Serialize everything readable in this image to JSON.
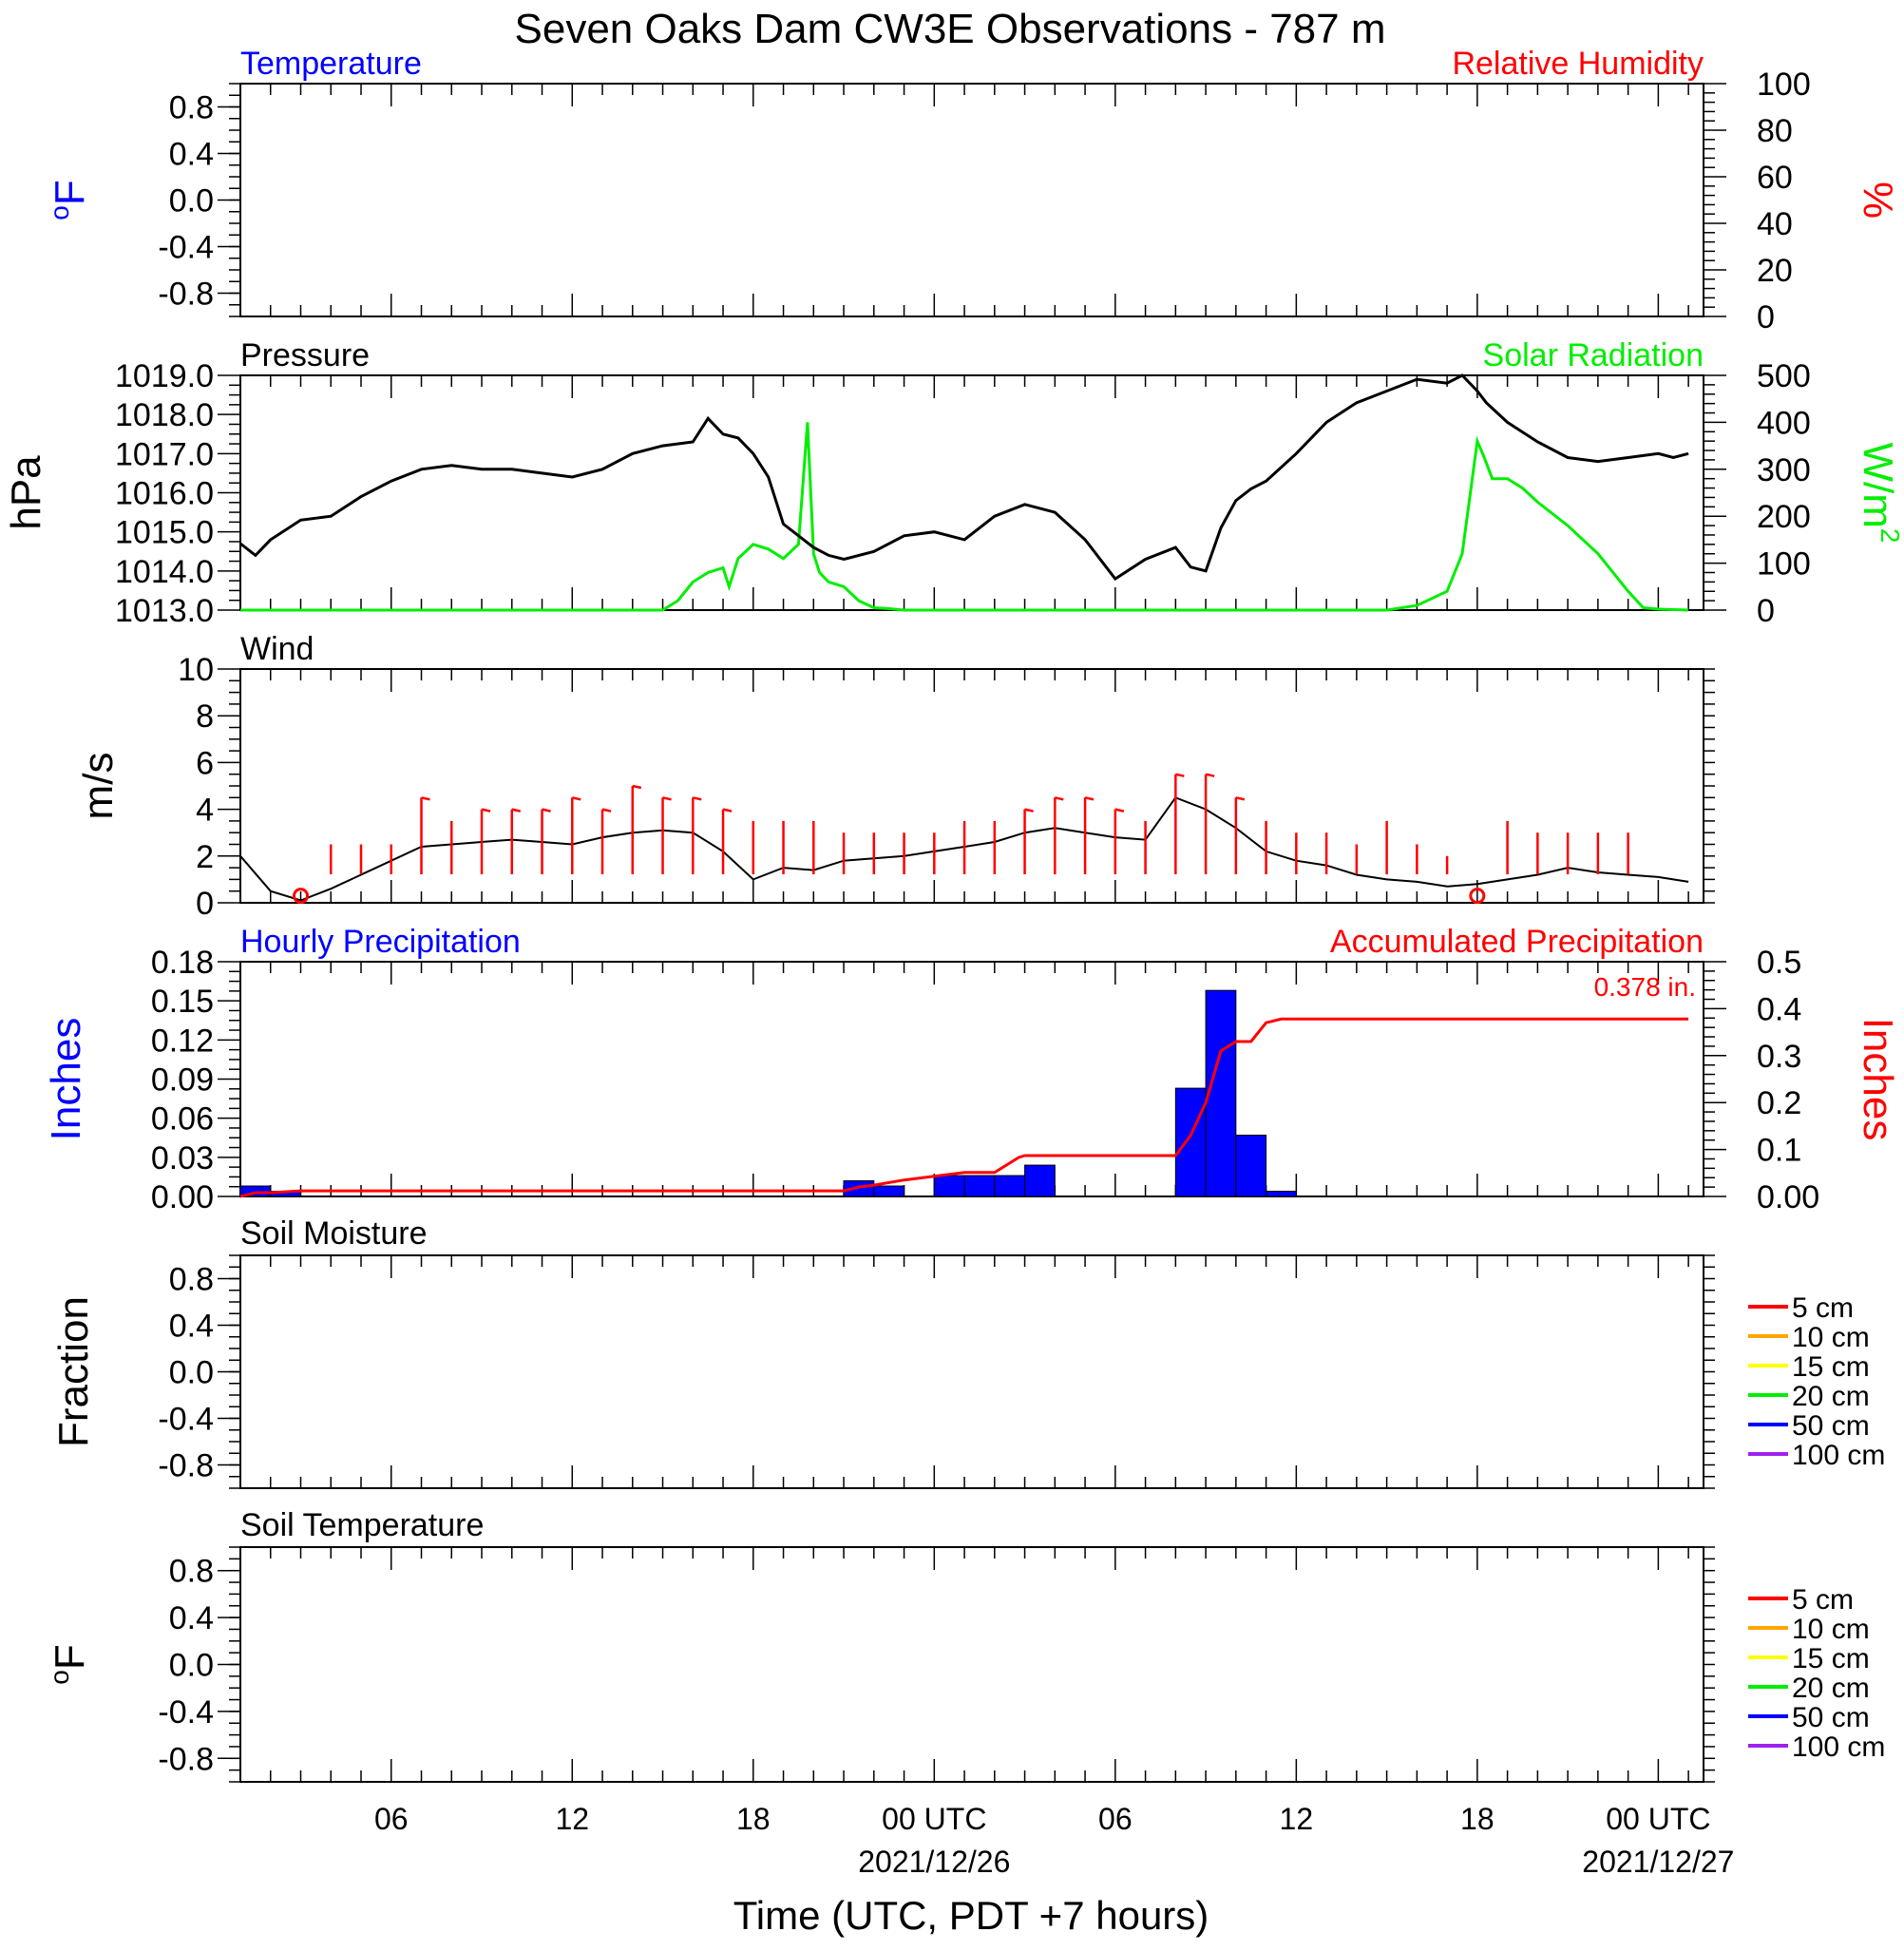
{
  "title": "Seven Oaks Dam CW3E Observations - 787 m",
  "xlabel": "Time (UTC, PDT +7 hours)",
  "x_axis": {
    "range_hours": [
      0,
      48.5
    ],
    "ticks": [
      {
        "hour": 5,
        "label": "06",
        "sub": ""
      },
      {
        "hour": 11,
        "label": "12",
        "sub": ""
      },
      {
        "hour": 17,
        "label": "18",
        "sub": ""
      },
      {
        "hour": 23,
        "label": "00 UTC",
        "sub": "2021/12/26"
      },
      {
        "hour": 29,
        "label": "06",
        "sub": ""
      },
      {
        "hour": 35,
        "label": "12",
        "sub": ""
      },
      {
        "hour": 41,
        "label": "18",
        "sub": ""
      },
      {
        "hour": 47,
        "label": "00 UTC",
        "sub": "2021/12/27"
      }
    ]
  },
  "panels": {
    "temp_rh": {
      "left_title": "Temperature",
      "right_title": "Relative Humidity",
      "left_unit": "oF",
      "right_unit": "%",
      "left_ticks": [
        "0.8",
        "0.4",
        "0.0",
        "-0.4",
        "-0.8"
      ],
      "right_ticks": [
        "100",
        "80",
        "60",
        "40",
        "20",
        "0"
      ],
      "left_color": "#0000ff",
      "right_color": "#ff0000"
    },
    "pressure_solar": {
      "left_title": "Pressure",
      "right_title": "Solar Radiation",
      "left_unit": "hPa",
      "right_unit": "W/m2",
      "left_ticks": [
        "1019.0",
        "1018.0",
        "1017.0",
        "1016.0",
        "1015.0",
        "1014.0",
        "1013.0"
      ],
      "right_ticks": [
        "500",
        "400",
        "300",
        "200",
        "100",
        "0"
      ],
      "left_color": "#000000",
      "right_color": "#00ee00"
    },
    "wind": {
      "left_title": "Wind",
      "left_unit": "m/s",
      "left_ticks": [
        "10",
        "8",
        "6",
        "4",
        "2",
        "0"
      ],
      "barb_color": "#ff0000"
    },
    "precip": {
      "left_title": "Hourly Precipitation",
      "right_title": "Accumulated Precipitation",
      "left_unit": "Inches",
      "right_unit": "Inches",
      "left_ticks": [
        "0.18",
        "0.15",
        "0.12",
        "0.09",
        "0.06",
        "0.03",
        "0.00"
      ],
      "right_ticks": [
        "0.5",
        "0.4",
        "0.3",
        "0.2",
        "0.1",
        "0.00"
      ],
      "total_label": "0.378 in.",
      "left_color": "#0000ff",
      "right_color": "#ff0000"
    },
    "soil_moisture": {
      "left_title": "Soil Moisture",
      "left_unit": "Fraction",
      "left_ticks": [
        "0.8",
        "0.4",
        "0.0",
        "-0.4",
        "-0.8"
      ]
    },
    "soil_temp": {
      "left_title": "Soil Temperature",
      "left_unit": "oF",
      "left_ticks": [
        "0.8",
        "0.4",
        "0.0",
        "-0.4",
        "-0.8"
      ]
    }
  },
  "legend": [
    {
      "label": "5 cm",
      "color": "#ff0000"
    },
    {
      "label": "10 cm",
      "color": "#ffa500"
    },
    {
      "label": "15 cm",
      "color": "#ffff00"
    },
    {
      "label": "20 cm",
      "color": "#00ee00"
    },
    {
      "label": "50 cm",
      "color": "#0000ff"
    },
    {
      "label": "100 cm",
      "color": "#a020f0"
    }
  ],
  "chart_data": [
    {
      "type": "line",
      "title": "Temperature / Relative Humidity",
      "series": [],
      "ylim": [
        -1,
        1
      ],
      "y2lim": [
        0,
        100
      ]
    },
    {
      "type": "line",
      "title": "Pressure / Solar Radiation",
      "x_unit": "hours since 2021/12/25 01 UTC",
      "ylim": [
        1013,
        1019
      ],
      "y2lim": [
        0,
        500
      ],
      "series": [
        {
          "name": "Pressure",
          "axis": "left",
          "x": [
            0,
            0.5,
            1,
            2,
            3,
            4,
            5,
            6,
            7,
            8,
            9,
            10,
            11,
            12,
            13,
            14,
            15,
            15.5,
            16,
            16.5,
            17,
            17.5,
            18,
            19,
            19.5,
            20,
            21,
            22,
            23,
            24,
            25,
            26,
            27,
            28,
            29,
            30,
            31,
            31.5,
            32,
            32.5,
            33,
            33.5,
            34,
            35,
            36,
            37,
            38,
            39,
            40,
            40.5,
            41,
            41.3,
            42,
            43,
            44,
            45,
            46,
            47,
            47.5,
            48
          ],
          "y": [
            1014.7,
            1014.4,
            1014.8,
            1015.3,
            1015.4,
            1015.9,
            1016.3,
            1016.6,
            1016.7,
            1016.6,
            1016.6,
            1016.5,
            1016.4,
            1016.6,
            1017.0,
            1017.2,
            1017.3,
            1017.9,
            1017.5,
            1017.4,
            1017.0,
            1016.4,
            1015.2,
            1014.6,
            1014.4,
            1014.3,
            1014.5,
            1014.9,
            1015.0,
            1014.8,
            1015.4,
            1015.7,
            1015.5,
            1014.8,
            1013.8,
            1014.3,
            1014.6,
            1014.1,
            1014.0,
            1015.1,
            1015.8,
            1016.1,
            1016.3,
            1017.0,
            1017.8,
            1018.3,
            1018.6,
            1018.9,
            1018.8,
            1019.0,
            1018.6,
            1018.3,
            1017.8,
            1017.3,
            1016.9,
            1016.8,
            1016.9,
            1017.0,
            1016.9,
            1017.0
          ]
        },
        {
          "name": "Solar Radiation",
          "axis": "right",
          "x": [
            0,
            14,
            14.5,
            15,
            15.5,
            16,
            16.2,
            16.5,
            17,
            17.5,
            18,
            18.5,
            18.8,
            19,
            19.2,
            19.5,
            20,
            20.5,
            21,
            21.5,
            22,
            22.5,
            38,
            39,
            40,
            40.5,
            41,
            41.2,
            41.5,
            42,
            42.5,
            43,
            44,
            45,
            46,
            46.5,
            47,
            48
          ],
          "y": [
            0,
            0,
            20,
            60,
            80,
            90,
            50,
            110,
            140,
            130,
            110,
            140,
            400,
            120,
            80,
            60,
            50,
            20,
            5,
            3,
            0,
            0,
            0,
            10,
            40,
            120,
            360,
            330,
            280,
            280,
            260,
            230,
            180,
            120,
            40,
            5,
            2,
            0
          ]
        }
      ]
    },
    {
      "type": "line",
      "title": "Wind",
      "x_unit": "hours since 2021/12/25 01 UTC",
      "ylim": [
        0,
        10
      ],
      "series": [
        {
          "name": "Wind speed",
          "x": [
            0,
            1,
            2,
            3,
            4,
            5,
            6,
            7,
            8,
            9,
            10,
            11,
            12,
            13,
            14,
            15,
            16,
            17,
            18,
            19,
            20,
            21,
            22,
            23,
            24,
            25,
            26,
            27,
            28,
            29,
            30,
            31,
            32,
            33,
            34,
            35,
            36,
            37,
            38,
            39,
            40,
            41,
            42,
            43,
            44,
            45,
            46,
            47,
            48
          ],
          "y": [
            2.0,
            0.5,
            0.1,
            0.6,
            1.2,
            1.8,
            2.4,
            2.5,
            2.6,
            2.7,
            2.6,
            2.5,
            2.8,
            3.0,
            3.1,
            3.0,
            2.2,
            1.0,
            1.5,
            1.4,
            1.8,
            1.9,
            2.0,
            2.2,
            2.4,
            2.6,
            3.0,
            3.2,
            3.0,
            2.8,
            2.7,
            4.5,
            4.0,
            3.2,
            2.2,
            1.8,
            1.6,
            1.2,
            1.0,
            0.9,
            0.7,
            0.8,
            1.0,
            1.2,
            1.5,
            1.3,
            1.2,
            1.1,
            0.9
          ]
        }
      ],
      "barbs": [
        {
          "hour": 2,
          "speed": 0,
          "calm": true
        },
        {
          "hour": 3,
          "speed": 2.5
        },
        {
          "hour": 4,
          "speed": 2.5
        },
        {
          "hour": 5,
          "speed": 2.5
        },
        {
          "hour": 6,
          "speed": 4.5
        },
        {
          "hour": 7,
          "speed": 3.5
        },
        {
          "hour": 8,
          "speed": 4.0
        },
        {
          "hour": 9,
          "speed": 4.0
        },
        {
          "hour": 10,
          "speed": 4.0
        },
        {
          "hour": 11,
          "speed": 4.5
        },
        {
          "hour": 12,
          "speed": 4.0
        },
        {
          "hour": 13,
          "speed": 5.0
        },
        {
          "hour": 14,
          "speed": 4.5
        },
        {
          "hour": 15,
          "speed": 4.5
        },
        {
          "hour": 16,
          "speed": 4.0
        },
        {
          "hour": 17,
          "speed": 3.5
        },
        {
          "hour": 18,
          "speed": 3.5
        },
        {
          "hour": 19,
          "speed": 3.5
        },
        {
          "hour": 20,
          "speed": 3.0
        },
        {
          "hour": 21,
          "speed": 3.0
        },
        {
          "hour": 22,
          "speed": 3.0
        },
        {
          "hour": 23,
          "speed": 3.0
        },
        {
          "hour": 24,
          "speed": 3.5
        },
        {
          "hour": 25,
          "speed": 3.5
        },
        {
          "hour": 26,
          "speed": 4.0
        },
        {
          "hour": 27,
          "speed": 4.5
        },
        {
          "hour": 28,
          "speed": 4.5
        },
        {
          "hour": 29,
          "speed": 4.0
        },
        {
          "hour": 30,
          "speed": 3.5
        },
        {
          "hour": 31,
          "speed": 5.5
        },
        {
          "hour": 32,
          "speed": 5.5
        },
        {
          "hour": 33,
          "speed": 4.5
        },
        {
          "hour": 34,
          "speed": 3.5
        },
        {
          "hour": 35,
          "speed": 3.0
        },
        {
          "hour": 36,
          "speed": 3.0
        },
        {
          "hour": 37,
          "speed": 2.5
        },
        {
          "hour": 38,
          "speed": 3.5
        },
        {
          "hour": 39,
          "speed": 2.5
        },
        {
          "hour": 40,
          "speed": 2.0
        },
        {
          "hour": 41,
          "speed": 0,
          "calm": true
        },
        {
          "hour": 42,
          "speed": 3.5
        },
        {
          "hour": 43,
          "speed": 3.0
        },
        {
          "hour": 44,
          "speed": 3.0
        },
        {
          "hour": 45,
          "speed": 3.0
        },
        {
          "hour": 46,
          "speed": 3.0
        }
      ]
    },
    {
      "type": "bar",
      "title": "Hourly / Accumulated Precipitation",
      "x_unit": "hours since 2021/12/25 01 UTC",
      "ylim": [
        0,
        0.18
      ],
      "y2lim": [
        0,
        0.5
      ],
      "series": [
        {
          "name": "Hourly Precipitation",
          "axis": "left",
          "x": [
            0,
            1,
            20,
            21,
            23,
            24,
            25,
            26,
            31,
            32,
            33,
            34
          ],
          "y": [
            0.008,
            0.004,
            0.012,
            0.008,
            0.016,
            0.016,
            0.016,
            0.024,
            0.083,
            0.158,
            0.047,
            0.004
          ]
        },
        {
          "name": "Accumulated Precipitation",
          "axis": "right",
          "x": [
            0,
            0.5,
            1,
            2,
            20,
            20.5,
            21,
            22,
            23,
            24,
            25,
            25.8,
            26,
            31,
            31.5,
            32,
            32.5,
            33,
            33.5,
            34,
            34.5,
            48
          ],
          "y": [
            0.0,
            0.008,
            0.008,
            0.012,
            0.012,
            0.02,
            0.024,
            0.035,
            0.043,
            0.051,
            0.051,
            0.083,
            0.087,
            0.087,
            0.13,
            0.2,
            0.31,
            0.33,
            0.33,
            0.37,
            0.378,
            0.378
          ]
        }
      ]
    },
    {
      "type": "line",
      "title": "Soil Moisture",
      "series": [],
      "ylim": [
        -1,
        1
      ]
    },
    {
      "type": "line",
      "title": "Soil Temperature",
      "series": [],
      "ylim": [
        -1,
        1
      ]
    }
  ]
}
